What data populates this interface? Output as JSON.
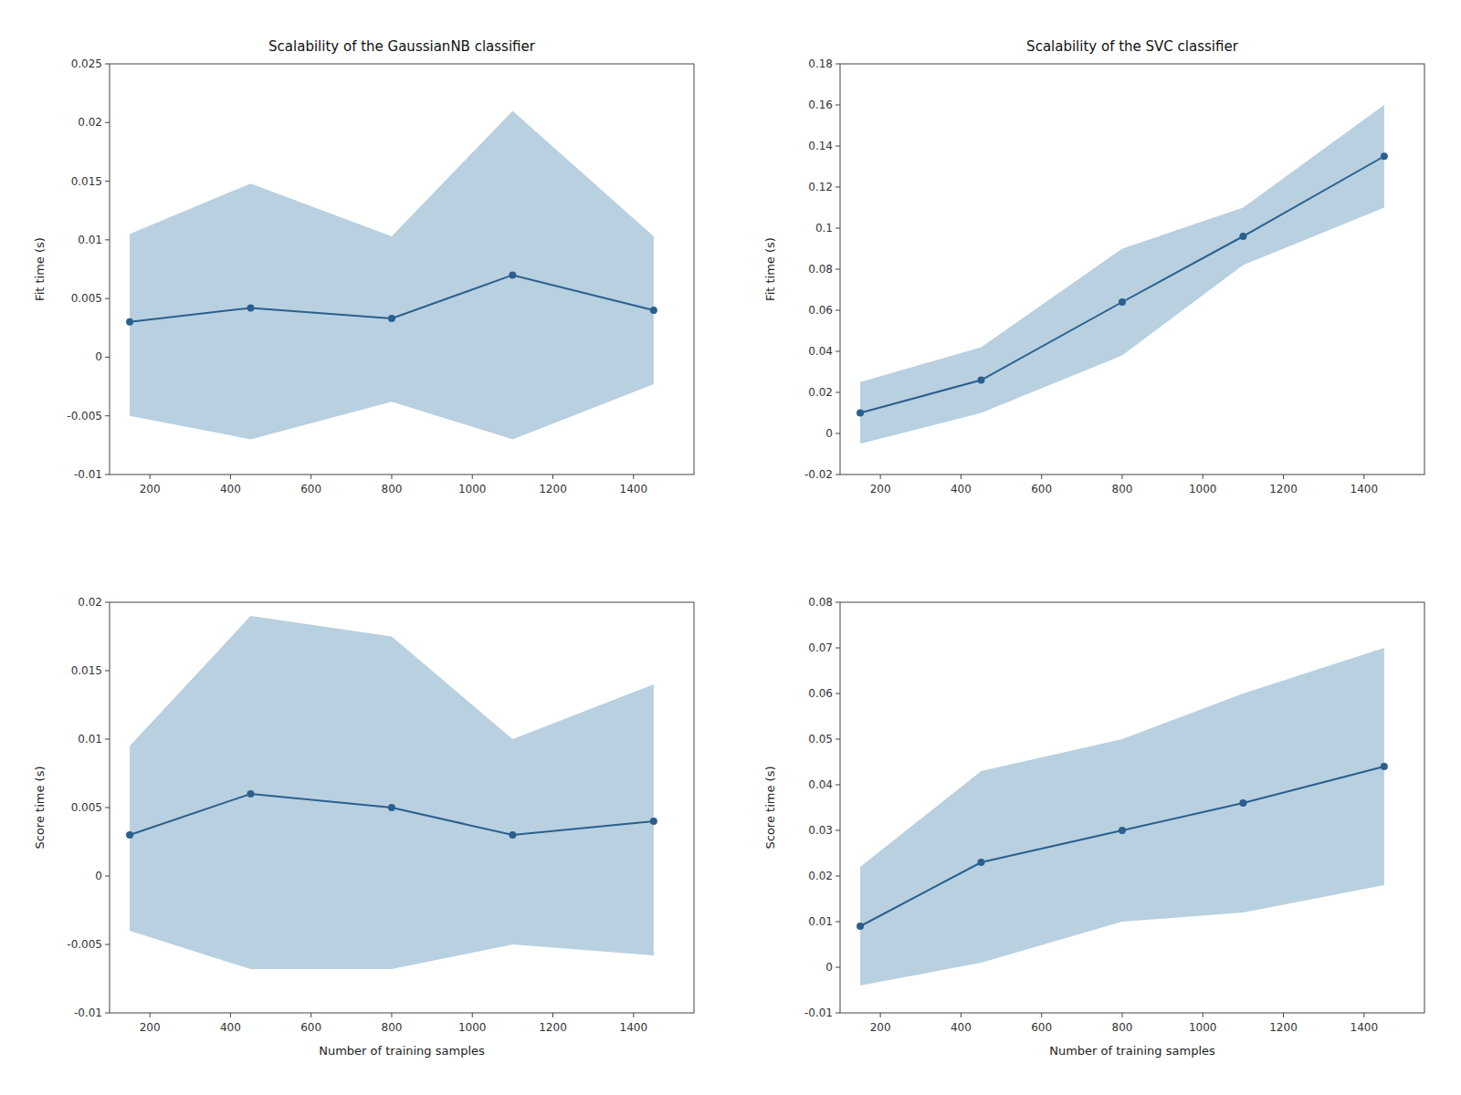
{
  "chart_data": [
    {
      "type": "line",
      "title": "Scalability of the GaussianNB classifier",
      "y_label": "Fit time (s)",
      "x": [
        150,
        450,
        800,
        1100,
        1450
      ],
      "series": [
        {
          "type": "line",
          "color": "#2b5f8e",
          "marker": "circle",
          "values": [
            0.003,
            0.0042,
            0.0033,
            0.007,
            0.004
          ]
        },
        {
          "type": "band",
          "color": "#b8d0e0",
          "upper": [
            0.0105,
            0.0148,
            0.0103,
            0.021,
            0.0103
          ],
          "lower": [
            -0.005,
            -0.007,
            -0.0038,
            -0.007,
            -0.0023
          ]
        }
      ],
      "xlim": [
        100,
        1550
      ],
      "xticks": [
        200,
        400,
        600,
        800,
        1000,
        1200,
        1400
      ],
      "ylim": [
        -0.01,
        0.025
      ],
      "yticks": [
        -0.01,
        -0.005,
        0,
        0.005,
        0.01,
        0.015,
        0.02,
        0.025
      ],
      "grid": false
    },
    {
      "type": "line",
      "title": "Scalability of the SVC classifier",
      "y_label": "Fit time (s)",
      "x": [
        150,
        450,
        800,
        1100,
        1450
      ],
      "series": [
        {
          "type": "line",
          "color": "#2b5f8e",
          "marker": "circle",
          "values": [
            0.01,
            0.026,
            0.064,
            0.096,
            0.135
          ]
        },
        {
          "type": "band",
          "color": "#b8d0e0",
          "upper": [
            0.025,
            0.042,
            0.09,
            0.11,
            0.16
          ],
          "lower": [
            -0.005,
            0.01,
            0.038,
            0.082,
            0.11
          ]
        }
      ],
      "xlim": [
        100,
        1550
      ],
      "xticks": [
        200,
        400,
        600,
        800,
        1000,
        1200,
        1400
      ],
      "ylim": [
        -0.02,
        0.18
      ],
      "yticks": [
        -0.02,
        0,
        0.02,
        0.04,
        0.06,
        0.08,
        0.1,
        0.12,
        0.14,
        0.16,
        0.18
      ],
      "grid": false
    },
    {
      "type": "line",
      "x_label": "Number of training samples",
      "y_label": "Score time (s)",
      "x": [
        150,
        450,
        800,
        1100,
        1450
      ],
      "series": [
        {
          "type": "line",
          "color": "#2b5f8e",
          "marker": "circle",
          "values": [
            0.003,
            0.006,
            0.005,
            0.003,
            0.004
          ]
        },
        {
          "type": "band",
          "color": "#b8d0e0",
          "upper": [
            0.0095,
            0.019,
            0.0175,
            0.01,
            0.014
          ],
          "lower": [
            -0.004,
            -0.0068,
            -0.0068,
            -0.005,
            -0.0058
          ]
        }
      ],
      "xlim": [
        100,
        1550
      ],
      "xticks": [
        200,
        400,
        600,
        800,
        1000,
        1200,
        1400
      ],
      "ylim": [
        -0.01,
        0.02
      ],
      "yticks": [
        -0.01,
        -0.005,
        0,
        0.005,
        0.01,
        0.015,
        0.02
      ],
      "grid": false
    },
    {
      "type": "line",
      "x_label": "Number of training samples",
      "y_label": "Score time (s)",
      "x": [
        150,
        450,
        800,
        1100,
        1450
      ],
      "series": [
        {
          "type": "line",
          "color": "#2b5f8e",
          "marker": "circle",
          "values": [
            0.009,
            0.023,
            0.03,
            0.036,
            0.044
          ]
        },
        {
          "type": "band",
          "color": "#b8d0e0",
          "upper": [
            0.022,
            0.043,
            0.05,
            0.06,
            0.07
          ],
          "lower": [
            -0.004,
            0.001,
            0.01,
            0.012,
            0.018
          ]
        }
      ],
      "xlim": [
        100,
        1550
      ],
      "xticks": [
        200,
        400,
        600,
        800,
        1000,
        1200,
        1400
      ],
      "ylim": [
        -0.01,
        0.08
      ],
      "yticks": [
        -0.01,
        0,
        0.01,
        0.02,
        0.03,
        0.04,
        0.05,
        0.06,
        0.07,
        0.08
      ],
      "grid": false
    }
  ]
}
